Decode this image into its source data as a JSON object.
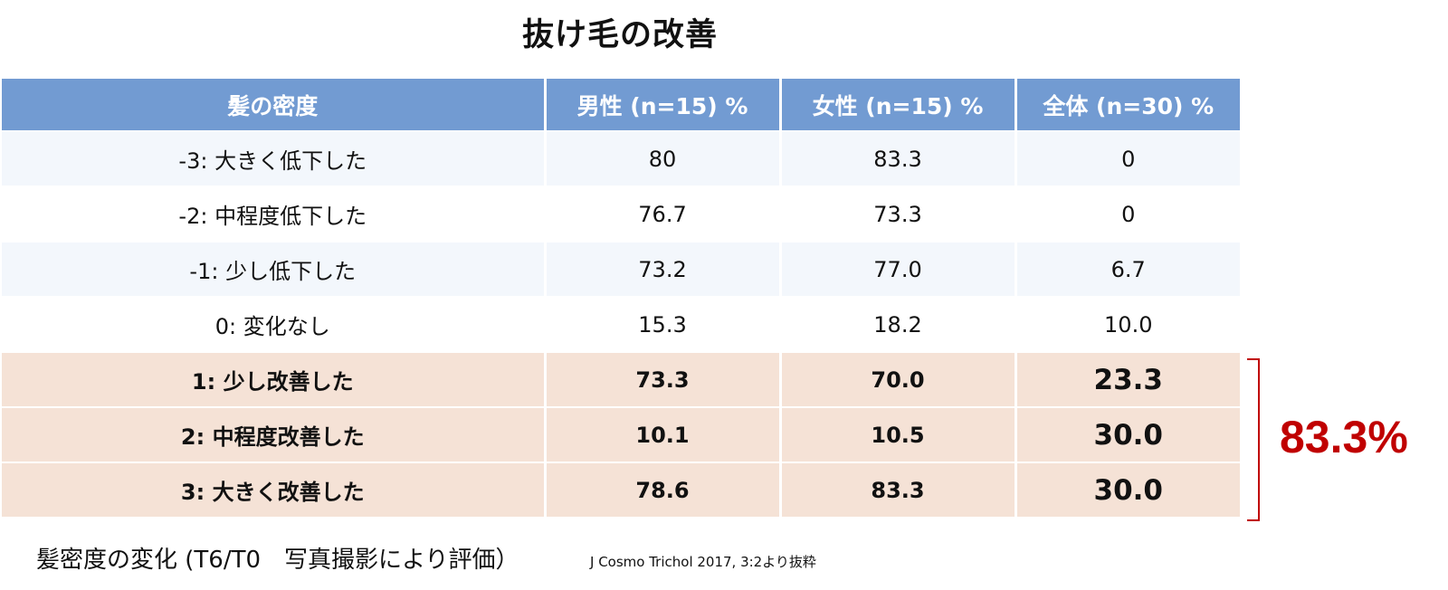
{
  "title": "抜け毛の改善",
  "table": {
    "headers": [
      "髪の密度",
      "男性 (n=15) %",
      "女性 (n=15) %",
      "全体 (n=30) %"
    ],
    "rows": [
      {
        "label": "-3: 大きく低下した",
        "male": "80",
        "female": "83.3",
        "total": "0"
      },
      {
        "label": "-2: 中程度低下した",
        "male": "76.7",
        "female": "73.3",
        "total": "0"
      },
      {
        "label": "-1: 少し低下した",
        "male": "73.2",
        "female": "77.0",
        "total": "6.7"
      },
      {
        "label": "0: 変化なし",
        "male": "15.3",
        "female": "18.2",
        "total": "10.0"
      },
      {
        "label": "1: 少し改善した",
        "male": "73.3",
        "female": "70.0",
        "total": "23.3"
      },
      {
        "label": "2: 中程度改善した",
        "male": "10.1",
        "female": "10.5",
        "total": "30.0"
      },
      {
        "label": "3: 大きく改善した",
        "male": "78.6",
        "female": "83.3",
        "total": "30.0"
      }
    ]
  },
  "summary": "83.3%",
  "caption": "髪密度の変化 (T6/T0　写真撮影により評価）",
  "source": "J Cosmo Trichol 2017, 3:2より抜粋",
  "colors": {
    "header_bg": "#729bd2",
    "highlight_bg": "#f5e2d6",
    "summary_red": "#c00000"
  }
}
